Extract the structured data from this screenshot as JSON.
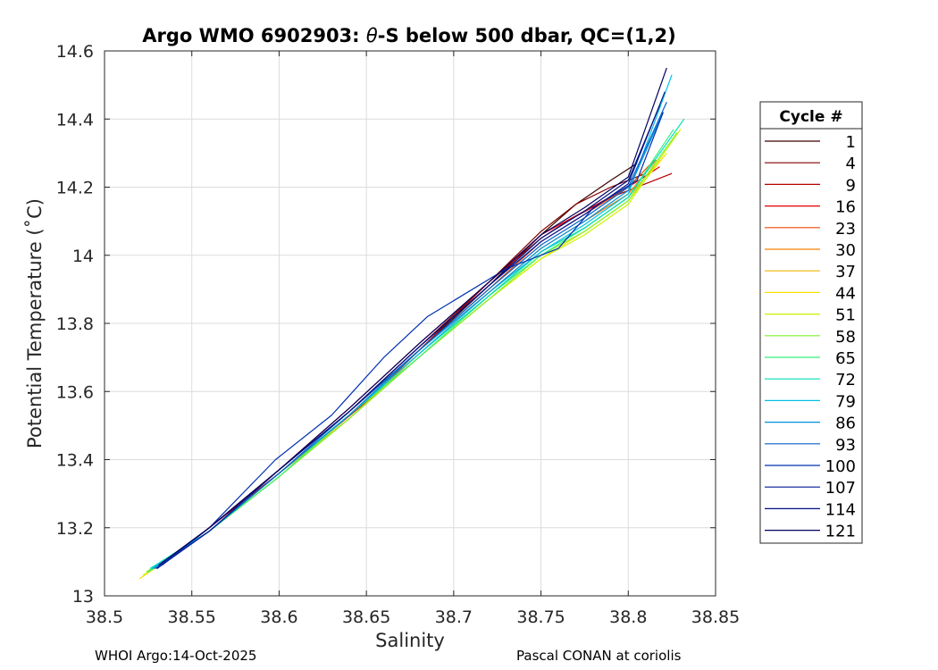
{
  "chart_data": {
    "type": "line",
    "title_parts": {
      "pre": "Argo WMO 6902903: ",
      "symbol": "θ",
      "post": "-S below 500 dbar,  QC=(1,2)"
    },
    "xlabel": "Salinity",
    "ylabel": "Potential Temperature (˚C)",
    "xlim": [
      38.5,
      38.85
    ],
    "ylim": [
      13.0,
      14.6
    ],
    "xticks": [
      "38.5",
      "38.55",
      "38.6",
      "38.65",
      "38.7",
      "38.75",
      "38.8",
      "38.85"
    ],
    "yticks": [
      "13",
      "13.2",
      "13.4",
      "13.6",
      "13.8",
      "14",
      "14.2",
      "14.4",
      "14.6"
    ],
    "grid": true,
    "legend": {
      "title": "Cycle #",
      "placement": "right, outside plot",
      "entries": [
        {
          "label": "1",
          "color": "#3d0000"
        },
        {
          "label": "4",
          "color": "#800000"
        },
        {
          "label": "9",
          "color": "#b50000"
        },
        {
          "label": "16",
          "color": "#e60000"
        },
        {
          "label": "23",
          "color": "#f04a00"
        },
        {
          "label": "30",
          "color": "#f58200"
        },
        {
          "label": "37",
          "color": "#f7b300"
        },
        {
          "label": "44",
          "color": "#f5e000"
        },
        {
          "label": "51",
          "color": "#c8f500"
        },
        {
          "label": "58",
          "color": "#7ff02a"
        },
        {
          "label": "65",
          "color": "#36f07a"
        },
        {
          "label": "72",
          "color": "#00e0b8"
        },
        {
          "label": "79",
          "color": "#00c0e8"
        },
        {
          "label": "86",
          "color": "#0090d8"
        },
        {
          "label": "93",
          "color": "#0060c8"
        },
        {
          "label": "100",
          "color": "#0030b0"
        },
        {
          "label": "107",
          "color": "#001a98"
        },
        {
          "label": "114",
          "color": "#000f80"
        },
        {
          "label": "121",
          "color": "#000060"
        }
      ]
    },
    "series": [
      {
        "color": "#3d0000",
        "x": [
          38.531,
          38.56,
          38.6,
          38.64,
          38.68,
          38.72,
          38.75,
          38.77,
          38.79,
          38.805
        ],
        "y": [
          13.09,
          13.2,
          13.37,
          13.54,
          13.72,
          13.91,
          14.06,
          14.15,
          14.22,
          14.27
        ]
      },
      {
        "color": "#800000",
        "x": [
          38.533,
          38.56,
          38.6,
          38.64,
          38.68,
          38.72,
          38.75,
          38.77,
          38.79,
          38.81
        ],
        "y": [
          13.09,
          13.2,
          13.37,
          13.54,
          13.73,
          13.92,
          14.07,
          14.15,
          14.2,
          14.24
        ]
      },
      {
        "color": "#b50000",
        "x": [
          38.532,
          38.565,
          38.61,
          38.65,
          38.69,
          38.72,
          38.75,
          38.765,
          38.79,
          38.825
        ],
        "y": [
          13.09,
          13.22,
          13.4,
          13.57,
          13.77,
          13.92,
          14.05,
          14.1,
          14.17,
          14.24
        ]
      },
      {
        "color": "#e60000",
        "x": [
          38.53,
          38.56,
          38.6,
          38.64,
          38.68,
          38.72,
          38.75,
          38.775,
          38.8,
          38.818
        ],
        "y": [
          13.08,
          13.2,
          13.37,
          13.55,
          13.74,
          13.92,
          14.06,
          14.13,
          14.2,
          14.26
        ]
      },
      {
        "color": "#f04a00",
        "x": [
          38.528,
          38.56,
          38.6,
          38.64,
          38.68,
          38.72,
          38.75,
          38.775,
          38.8,
          38.815
        ],
        "y": [
          13.08,
          13.19,
          13.36,
          13.53,
          13.72,
          13.9,
          14.04,
          14.12,
          14.2,
          14.28
        ]
      },
      {
        "color": "#f58200",
        "x": [
          38.527,
          38.56,
          38.6,
          38.64,
          38.68,
          38.72,
          38.75,
          38.775,
          38.8,
          38.816
        ],
        "y": [
          13.08,
          13.19,
          13.36,
          13.53,
          13.71,
          13.89,
          14.02,
          14.1,
          14.18,
          14.28
        ]
      },
      {
        "color": "#f7b300",
        "x": [
          38.524,
          38.56,
          38.6,
          38.64,
          38.68,
          38.72,
          38.75,
          38.775,
          38.8,
          38.818
        ],
        "y": [
          13.07,
          13.19,
          13.36,
          13.52,
          13.71,
          13.88,
          14.01,
          14.08,
          14.17,
          14.28
        ]
      },
      {
        "color": "#f5e000",
        "x": [
          38.52,
          38.56,
          38.6,
          38.64,
          38.68,
          38.72,
          38.75,
          38.775,
          38.8,
          38.822
        ],
        "y": [
          13.05,
          13.19,
          13.35,
          13.52,
          13.7,
          13.87,
          13.99,
          14.07,
          14.16,
          14.3
        ]
      },
      {
        "color": "#c8f500",
        "x": [
          38.522,
          38.56,
          38.6,
          38.64,
          38.68,
          38.72,
          38.75,
          38.775,
          38.8,
          38.83
        ],
        "y": [
          13.06,
          13.19,
          13.35,
          13.52,
          13.7,
          13.87,
          13.99,
          14.06,
          14.15,
          14.37
        ]
      },
      {
        "color": "#7ff02a",
        "x": [
          38.524,
          38.56,
          38.6,
          38.64,
          38.68,
          38.72,
          38.75,
          38.775,
          38.8,
          38.828
        ],
        "y": [
          13.07,
          13.19,
          13.35,
          13.52,
          13.7,
          13.87,
          14.0,
          14.07,
          14.16,
          14.36
        ]
      },
      {
        "color": "#36f07a",
        "x": [
          38.525,
          38.56,
          38.6,
          38.64,
          38.68,
          38.72,
          38.75,
          38.775,
          38.8,
          38.826
        ],
        "y": [
          13.07,
          13.19,
          13.35,
          13.53,
          13.7,
          13.88,
          14.0,
          14.08,
          14.17,
          14.37
        ]
      },
      {
        "color": "#00e0b8",
        "x": [
          38.526,
          38.56,
          38.6,
          38.64,
          38.68,
          38.72,
          38.75,
          38.775,
          38.8,
          38.832
        ],
        "y": [
          13.08,
          13.19,
          13.36,
          13.53,
          13.71,
          13.88,
          14.01,
          14.08,
          14.17,
          14.4
        ]
      },
      {
        "color": "#00c0e8",
        "x": [
          38.527,
          38.56,
          38.6,
          38.64,
          38.68,
          38.72,
          38.75,
          38.775,
          38.8,
          38.825
        ],
        "y": [
          13.08,
          13.19,
          13.36,
          13.53,
          13.71,
          13.89,
          14.01,
          14.09,
          14.18,
          14.53
        ]
      },
      {
        "color": "#0090d8",
        "x": [
          38.528,
          38.56,
          38.6,
          38.64,
          38.68,
          38.72,
          38.75,
          38.775,
          38.8,
          38.82
        ],
        "y": [
          13.08,
          13.19,
          13.36,
          13.53,
          13.72,
          13.89,
          14.02,
          14.1,
          14.19,
          14.42
        ]
      },
      {
        "color": "#0060c8",
        "x": [
          38.529,
          38.56,
          38.6,
          38.64,
          38.68,
          38.72,
          38.75,
          38.775,
          38.8,
          38.822
        ],
        "y": [
          13.08,
          13.19,
          13.36,
          13.54,
          13.72,
          13.9,
          14.03,
          14.11,
          14.2,
          14.45
        ]
      },
      {
        "color": "#0030b0",
        "x": [
          38.53,
          38.56,
          38.598,
          38.63,
          38.66,
          38.685,
          38.73,
          38.76,
          38.78,
          38.805,
          38.82
        ],
        "y": [
          13.08,
          13.2,
          13.4,
          13.53,
          13.7,
          13.82,
          13.96,
          14.02,
          14.14,
          14.22,
          14.42
        ]
      },
      {
        "color": "#001a98",
        "x": [
          38.53,
          38.56,
          38.6,
          38.64,
          38.68,
          38.72,
          38.75,
          38.775,
          38.8,
          38.821
        ],
        "y": [
          13.08,
          13.19,
          13.37,
          13.54,
          13.73,
          13.91,
          14.04,
          14.12,
          14.21,
          14.48
        ]
      },
      {
        "color": "#000f80",
        "x": [
          38.531,
          38.56,
          38.6,
          38.64,
          38.68,
          38.72,
          38.75,
          38.775,
          38.8,
          38.818
        ],
        "y": [
          13.09,
          13.2,
          13.37,
          13.54,
          13.73,
          13.91,
          14.05,
          14.13,
          14.22,
          14.44
        ]
      },
      {
        "color": "#000060",
        "x": [
          38.531,
          38.56,
          38.6,
          38.64,
          38.68,
          38.72,
          38.75,
          38.775,
          38.8,
          38.822
        ],
        "y": [
          13.09,
          13.2,
          13.37,
          13.55,
          13.74,
          13.92,
          14.06,
          14.14,
          14.23,
          14.55
        ]
      }
    ]
  },
  "footer": {
    "left": "WHOI Argo:14-Oct-2025",
    "right": "Pascal CONAN at coriolis"
  }
}
